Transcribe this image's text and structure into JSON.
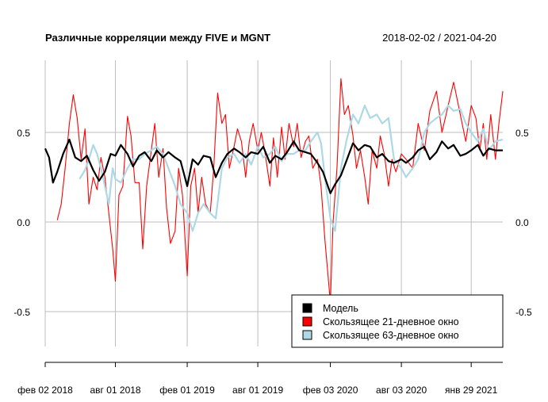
{
  "chart_data": {
    "type": "line",
    "title": "Различные корреляции между FIVE и MGNT",
    "date_range": "2018-02-02 / 2021-04-20",
    "xlabel": "",
    "ylabel": "",
    "xlim": [
      "2018-02-02",
      "2021-04-20"
    ],
    "ylim": [
      -0.75,
      0.9
    ],
    "y_ticks": [
      -0.5,
      0.0,
      0.5
    ],
    "y_tick_labels": [
      "-0.5",
      "0.0",
      "0.5"
    ],
    "x_ticks": [
      "2018-02-02",
      "2018-08-01",
      "2019-02-01",
      "2019-08-01",
      "2020-02-03",
      "2020-08-03",
      "2021-01-29"
    ],
    "x_tick_labels": [
      "фев 02 2018",
      "авг 01 2018",
      "фев 01 2019",
      "авг 01 2019",
      "фев 03 2020",
      "авг 03 2020",
      "янв 29 2021"
    ],
    "grid": true,
    "legend_position": "bottom-right",
    "series": [
      {
        "name": "Модель",
        "color": "#000000",
        "x": [
          "2018-02-02",
          "2018-02-12",
          "2018-02-22",
          "2018-03-05",
          "2018-03-20",
          "2018-04-05",
          "2018-04-20",
          "2018-05-05",
          "2018-05-20",
          "2018-06-05",
          "2018-06-20",
          "2018-07-05",
          "2018-07-20",
          "2018-08-01",
          "2018-08-15",
          "2018-09-01",
          "2018-09-15",
          "2018-10-01",
          "2018-10-15",
          "2018-11-01",
          "2018-11-15",
          "2018-12-01",
          "2018-12-15",
          "2019-01-01",
          "2019-01-15",
          "2019-02-01",
          "2019-02-15",
          "2019-03-01",
          "2019-03-15",
          "2019-04-01",
          "2019-04-15",
          "2019-05-01",
          "2019-05-15",
          "2019-06-01",
          "2019-06-15",
          "2019-07-01",
          "2019-07-15",
          "2019-08-01",
          "2019-08-15",
          "2019-09-01",
          "2019-09-15",
          "2019-10-01",
          "2019-10-15",
          "2019-11-01",
          "2019-11-15",
          "2019-12-01",
          "2019-12-15",
          "2020-01-01",
          "2020-01-15",
          "2020-02-03",
          "2020-02-15",
          "2020-03-01",
          "2020-03-15",
          "2020-04-01",
          "2020-04-15",
          "2020-05-01",
          "2020-05-15",
          "2020-06-01",
          "2020-06-15",
          "2020-07-01",
          "2020-07-15",
          "2020-08-03",
          "2020-08-15",
          "2020-09-01",
          "2020-09-15",
          "2020-10-01",
          "2020-10-15",
          "2020-11-01",
          "2020-11-15",
          "2020-12-01",
          "2020-12-15",
          "2021-01-01",
          "2021-01-15",
          "2021-01-29",
          "2021-02-15",
          "2021-03-01",
          "2021-03-15",
          "2021-04-01",
          "2021-04-20"
        ],
        "y": [
          0.41,
          0.36,
          0.22,
          0.28,
          0.38,
          0.46,
          0.36,
          0.34,
          0.37,
          0.29,
          0.23,
          0.28,
          0.38,
          0.37,
          0.43,
          0.38,
          0.31,
          0.37,
          0.39,
          0.34,
          0.4,
          0.36,
          0.39,
          0.36,
          0.34,
          0.2,
          0.35,
          0.32,
          0.37,
          0.36,
          0.25,
          0.33,
          0.38,
          0.41,
          0.39,
          0.36,
          0.39,
          0.38,
          0.42,
          0.33,
          0.37,
          0.35,
          0.39,
          0.45,
          0.4,
          0.39,
          0.38,
          0.33,
          0.28,
          0.16,
          0.21,
          0.26,
          0.34,
          0.44,
          0.4,
          0.43,
          0.42,
          0.36,
          0.38,
          0.34,
          0.33,
          0.35,
          0.33,
          0.36,
          0.4,
          0.42,
          0.35,
          0.39,
          0.45,
          0.41,
          0.43,
          0.37,
          0.38,
          0.4,
          0.43,
          0.37,
          0.41,
          0.4,
          0.4
        ]
      },
      {
        "name": "Скользящее 21-дневное окно",
        "color": "#ff0000",
        "x": [
          "2018-03-05",
          "2018-03-15",
          "2018-03-25",
          "2018-04-05",
          "2018-04-15",
          "2018-04-25",
          "2018-05-05",
          "2018-05-15",
          "2018-05-25",
          "2018-06-05",
          "2018-06-15",
          "2018-06-25",
          "2018-07-05",
          "2018-07-15",
          "2018-07-25",
          "2018-08-01",
          "2018-08-10",
          "2018-08-20",
          "2018-09-01",
          "2018-09-10",
          "2018-09-20",
          "2018-10-01",
          "2018-10-10",
          "2018-10-20",
          "2018-11-01",
          "2018-11-10",
          "2018-11-20",
          "2018-12-01",
          "2018-12-10",
          "2018-12-20",
          "2019-01-01",
          "2019-01-10",
          "2019-01-20",
          "2019-02-01",
          "2019-02-10",
          "2019-02-20",
          "2019-03-01",
          "2019-03-10",
          "2019-03-20",
          "2019-04-01",
          "2019-04-10",
          "2019-04-20",
          "2019-05-01",
          "2019-05-10",
          "2019-05-20",
          "2019-06-01",
          "2019-06-10",
          "2019-06-20",
          "2019-07-01",
          "2019-07-10",
          "2019-07-20",
          "2019-08-01",
          "2019-08-10",
          "2019-08-20",
          "2019-09-01",
          "2019-09-10",
          "2019-09-20",
          "2019-10-01",
          "2019-10-10",
          "2019-10-20",
          "2019-11-01",
          "2019-11-10",
          "2019-11-20",
          "2019-12-01",
          "2019-12-10",
          "2019-12-20",
          "2020-01-01",
          "2020-01-10",
          "2020-01-20",
          "2020-02-03",
          "2020-02-10",
          "2020-02-20",
          "2020-03-01",
          "2020-03-10",
          "2020-03-20",
          "2020-04-01",
          "2020-04-10",
          "2020-04-20",
          "2020-05-01",
          "2020-05-10",
          "2020-05-20",
          "2020-06-01",
          "2020-06-10",
          "2020-06-20",
          "2020-07-01",
          "2020-07-10",
          "2020-07-20",
          "2020-08-03",
          "2020-08-15",
          "2020-09-01",
          "2020-09-15",
          "2020-10-01",
          "2020-10-15",
          "2020-11-01",
          "2020-11-15",
          "2020-12-01",
          "2020-12-15",
          "2021-01-01",
          "2021-01-15",
          "2021-01-29",
          "2021-02-10",
          "2021-02-20",
          "2021-03-01",
          "2021-03-10",
          "2021-03-20",
          "2021-04-01",
          "2021-04-10",
          "2021-04-20"
        ],
        "y": [
          0.01,
          0.1,
          0.3,
          0.55,
          0.71,
          0.58,
          0.35,
          0.52,
          0.1,
          0.25,
          0.18,
          0.36,
          0.25,
          0.05,
          -0.15,
          -0.33,
          0.15,
          0.2,
          0.59,
          0.48,
          0.22,
          0.22,
          -0.15,
          0.2,
          0.4,
          0.55,
          0.25,
          0.41,
          0.08,
          -0.12,
          -0.05,
          0.3,
          0.15,
          -0.3,
          0.2,
          0.3,
          0.05,
          0.25,
          0.1,
          0.05,
          0.3,
          0.72,
          0.55,
          0.6,
          0.3,
          0.42,
          0.52,
          0.45,
          0.25,
          0.45,
          0.55,
          0.4,
          0.5,
          0.38,
          0.2,
          0.47,
          0.25,
          0.53,
          0.35,
          0.55,
          0.42,
          0.55,
          0.36,
          0.45,
          0.48,
          0.3,
          0.35,
          0.2,
          -0.1,
          -0.45,
          0.0,
          0.3,
          0.8,
          0.6,
          0.65,
          0.48,
          0.3,
          0.4,
          0.25,
          0.1,
          0.4,
          0.3,
          0.48,
          0.38,
          0.2,
          0.35,
          0.28,
          0.38,
          0.35,
          0.3,
          0.55,
          0.4,
          0.62,
          0.73,
          0.5,
          0.65,
          0.78,
          0.6,
          0.45,
          0.65,
          0.58,
          0.4,
          0.55,
          0.35,
          0.6,
          0.35,
          0.55,
          0.73
        ]
      },
      {
        "name": "Скользящее 63-дневное окно",
        "color": "#add8e6",
        "x": [
          "2018-05-01",
          "2018-05-15",
          "2018-05-25",
          "2018-06-05",
          "2018-06-15",
          "2018-06-25",
          "2018-07-05",
          "2018-07-15",
          "2018-07-25",
          "2018-08-01",
          "2018-08-15",
          "2018-09-01",
          "2018-09-15",
          "2018-10-01",
          "2018-10-15",
          "2018-11-01",
          "2018-11-15",
          "2018-12-01",
          "2018-12-15",
          "2019-01-01",
          "2019-01-15",
          "2019-02-01",
          "2019-02-15",
          "2019-03-01",
          "2019-03-15",
          "2019-04-01",
          "2019-04-15",
          "2019-05-01",
          "2019-05-15",
          "2019-06-01",
          "2019-06-15",
          "2019-07-01",
          "2019-07-15",
          "2019-08-01",
          "2019-08-15",
          "2019-09-01",
          "2019-09-15",
          "2019-10-01",
          "2019-10-15",
          "2019-11-01",
          "2019-11-15",
          "2019-12-01",
          "2019-12-15",
          "2020-01-01",
          "2020-01-10",
          "2020-01-20",
          "2020-02-03",
          "2020-02-15",
          "2020-03-01",
          "2020-03-15",
          "2020-04-01",
          "2020-04-15",
          "2020-05-01",
          "2020-05-15",
          "2020-06-01",
          "2020-06-15",
          "2020-07-01",
          "2020-07-15",
          "2020-08-03",
          "2020-08-15",
          "2020-09-01",
          "2020-09-15",
          "2020-10-01",
          "2020-10-15",
          "2020-11-01",
          "2020-11-15",
          "2020-12-01",
          "2020-12-15",
          "2021-01-01",
          "2021-01-15",
          "2021-01-29",
          "2021-02-15",
          "2021-03-01",
          "2021-03-15",
          "2021-04-01",
          "2021-04-20"
        ],
        "y": [
          0.24,
          0.29,
          0.35,
          0.43,
          0.38,
          0.3,
          0.2,
          0.1,
          0.3,
          0.24,
          0.22,
          0.3,
          0.35,
          0.35,
          0.38,
          0.4,
          0.42,
          0.38,
          0.3,
          0.2,
          0.1,
          0.05,
          -0.05,
          0.05,
          0.1,
          0.05,
          0.02,
          0.3,
          0.36,
          0.38,
          0.33,
          0.38,
          0.32,
          0.42,
          0.36,
          0.38,
          0.42,
          0.34,
          0.38,
          0.38,
          0.4,
          0.4,
          0.45,
          0.5,
          0.44,
          0.25,
          0.02,
          -0.05,
          0.3,
          0.45,
          0.6,
          0.55,
          0.65,
          0.58,
          0.6,
          0.55,
          0.58,
          0.35,
          0.3,
          0.25,
          0.3,
          0.35,
          0.5,
          0.55,
          0.58,
          0.6,
          0.65,
          0.62,
          0.63,
          0.55,
          0.5,
          0.45,
          0.52,
          0.4,
          0.45,
          0.46
        ]
      }
    ]
  }
}
